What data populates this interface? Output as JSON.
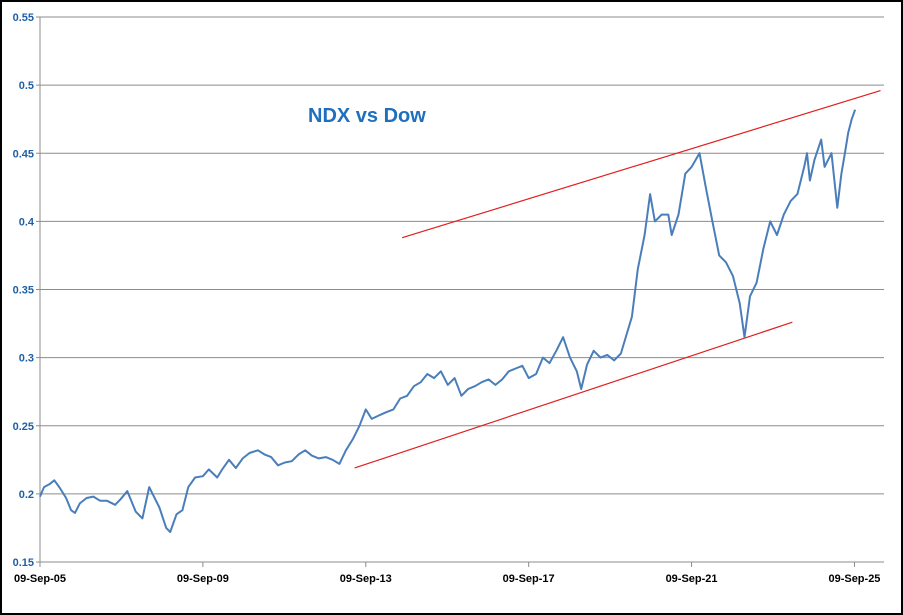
{
  "chart_data": {
    "type": "line",
    "title": "NDX vs Dow",
    "xlabel": "",
    "ylabel": "",
    "ylim": [
      0.15,
      0.55
    ],
    "y_ticks": [
      "0.15",
      "0.2",
      "0.25",
      "0.3",
      "0.35",
      "0.4",
      "0.45",
      "0.5",
      "0.55"
    ],
    "x_ticks": [
      "09-Sep-05",
      "09-Sep-09",
      "09-Sep-13",
      "09-Sep-17",
      "09-Sep-21",
      "09-Sep-25"
    ],
    "xlim": [
      "2005-09-09",
      "2026-06-01"
    ],
    "grid": "horizontal",
    "legend": "none",
    "colors": {
      "series": "#4a7ebb",
      "trendline": "#e02020",
      "title": "#1f6fbf",
      "tick": "#1f5fa6"
    },
    "series": [
      {
        "x": [
          "2005-09-09",
          "2005-10-15",
          "2005-12-01",
          "2006-01-15",
          "2006-03-01",
          "2006-05-01",
          "2006-06-15",
          "2006-07-20",
          "2006-09-01",
          "2006-11-01",
          "2007-01-01",
          "2007-03-01",
          "2007-05-01",
          "2007-07-15",
          "2007-09-01",
          "2007-11-01",
          "2008-01-15",
          "2008-03-15",
          "2008-05-15",
          "2008-06-15",
          "2008-08-15",
          "2008-10-15",
          "2008-11-20",
          "2009-01-15",
          "2009-03-09",
          "2009-05-01",
          "2009-07-01",
          "2009-09-09",
          "2009-11-01",
          "2010-01-15",
          "2010-03-01",
          "2010-05-01",
          "2010-07-01",
          "2010-09-01",
          "2010-11-01",
          "2011-01-15",
          "2011-03-15",
          "2011-05-15",
          "2011-07-15",
          "2011-09-15",
          "2011-11-15",
          "2012-01-15",
          "2012-03-15",
          "2012-05-15",
          "2012-07-15",
          "2012-09-15",
          "2012-11-15",
          "2013-01-15",
          "2013-03-15",
          "2013-05-15",
          "2013-07-15",
          "2013-09-09",
          "2013-11-01",
          "2014-01-15",
          "2014-03-15",
          "2014-05-15",
          "2014-07-15",
          "2014-09-15",
          "2014-11-15",
          "2015-01-15",
          "2015-03-15",
          "2015-05-15",
          "2015-07-15",
          "2015-09-15",
          "2015-11-15",
          "2016-01-15",
          "2016-03-15",
          "2016-05-15",
          "2016-07-15",
          "2016-09-15",
          "2016-11-15",
          "2017-01-15",
          "2017-03-15",
          "2017-05-15",
          "2017-07-15",
          "2017-09-09",
          "2017-11-15",
          "2018-01-15",
          "2018-03-15",
          "2018-05-15",
          "2018-07-15",
          "2018-09-15",
          "2018-11-15",
          "2018-12-24",
          "2019-02-15",
          "2019-04-15",
          "2019-06-15",
          "2019-08-15",
          "2019-10-15",
          "2019-12-15",
          "2020-02-15",
          "2020-03-23",
          "2020-05-15",
          "2020-07-15",
          "2020-09-02",
          "2020-10-15",
          "2020-12-15",
          "2021-02-12",
          "2021-03-15",
          "2021-05-15",
          "2021-07-15",
          "2021-09-09",
          "2021-11-19",
          "2022-01-15",
          "2022-03-15",
          "2022-05-15",
          "2022-07-15",
          "2022-09-15",
          "2022-11-15",
          "2022-12-28",
          "2023-02-15",
          "2023-04-15",
          "2023-06-15",
          "2023-08-15",
          "2023-10-15",
          "2023-12-15",
          "2024-02-15",
          "2024-04-15",
          "2024-06-15",
          "2024-07-10",
          "2024-08-05",
          "2024-09-15",
          "2024-11-15",
          "2024-12-15",
          "2025-02-15",
          "2025-04-08",
          "2025-05-15",
          "2025-06-15",
          "2025-07-15",
          "2025-08-15",
          "2025-09-15"
        ],
        "values": [
          0.198,
          0.205,
          0.207,
          0.21,
          0.205,
          0.197,
          0.188,
          0.186,
          0.193,
          0.197,
          0.198,
          0.195,
          0.195,
          0.192,
          0.196,
          0.202,
          0.187,
          0.182,
          0.205,
          0.2,
          0.19,
          0.175,
          0.172,
          0.185,
          0.188,
          0.205,
          0.212,
          0.213,
          0.218,
          0.212,
          0.218,
          0.225,
          0.219,
          0.226,
          0.23,
          0.232,
          0.229,
          0.227,
          0.221,
          0.223,
          0.224,
          0.229,
          0.232,
          0.228,
          0.226,
          0.227,
          0.225,
          0.222,
          0.232,
          0.24,
          0.25,
          0.262,
          0.255,
          0.258,
          0.26,
          0.262,
          0.27,
          0.272,
          0.279,
          0.282,
          0.288,
          0.285,
          0.29,
          0.28,
          0.285,
          0.272,
          0.277,
          0.279,
          0.282,
          0.284,
          0.28,
          0.284,
          0.29,
          0.292,
          0.294,
          0.285,
          0.288,
          0.3,
          0.296,
          0.305,
          0.315,
          0.3,
          0.29,
          0.277,
          0.295,
          0.305,
          0.3,
          0.302,
          0.298,
          0.303,
          0.32,
          0.33,
          0.365,
          0.39,
          0.42,
          0.4,
          0.405,
          0.405,
          0.39,
          0.405,
          0.435,
          0.44,
          0.45,
          0.425,
          0.4,
          0.375,
          0.37,
          0.36,
          0.34,
          0.315,
          0.345,
          0.355,
          0.38,
          0.4,
          0.39,
          0.405,
          0.415,
          0.42,
          0.44,
          0.45,
          0.43,
          0.445,
          0.46,
          0.44,
          0.45,
          0.41,
          0.435,
          0.45,
          0.465,
          0.475,
          0.482
        ]
      }
    ],
    "annotations": [
      {
        "type": "trendline",
        "from": [
          "2014-08-01",
          0.388
        ],
        "to": [
          "2026-05-01",
          0.496
        ]
      },
      {
        "type": "trendline",
        "from": [
          "2013-06-01",
          0.219
        ],
        "to": [
          "2024-03-01",
          0.326
        ]
      }
    ]
  }
}
